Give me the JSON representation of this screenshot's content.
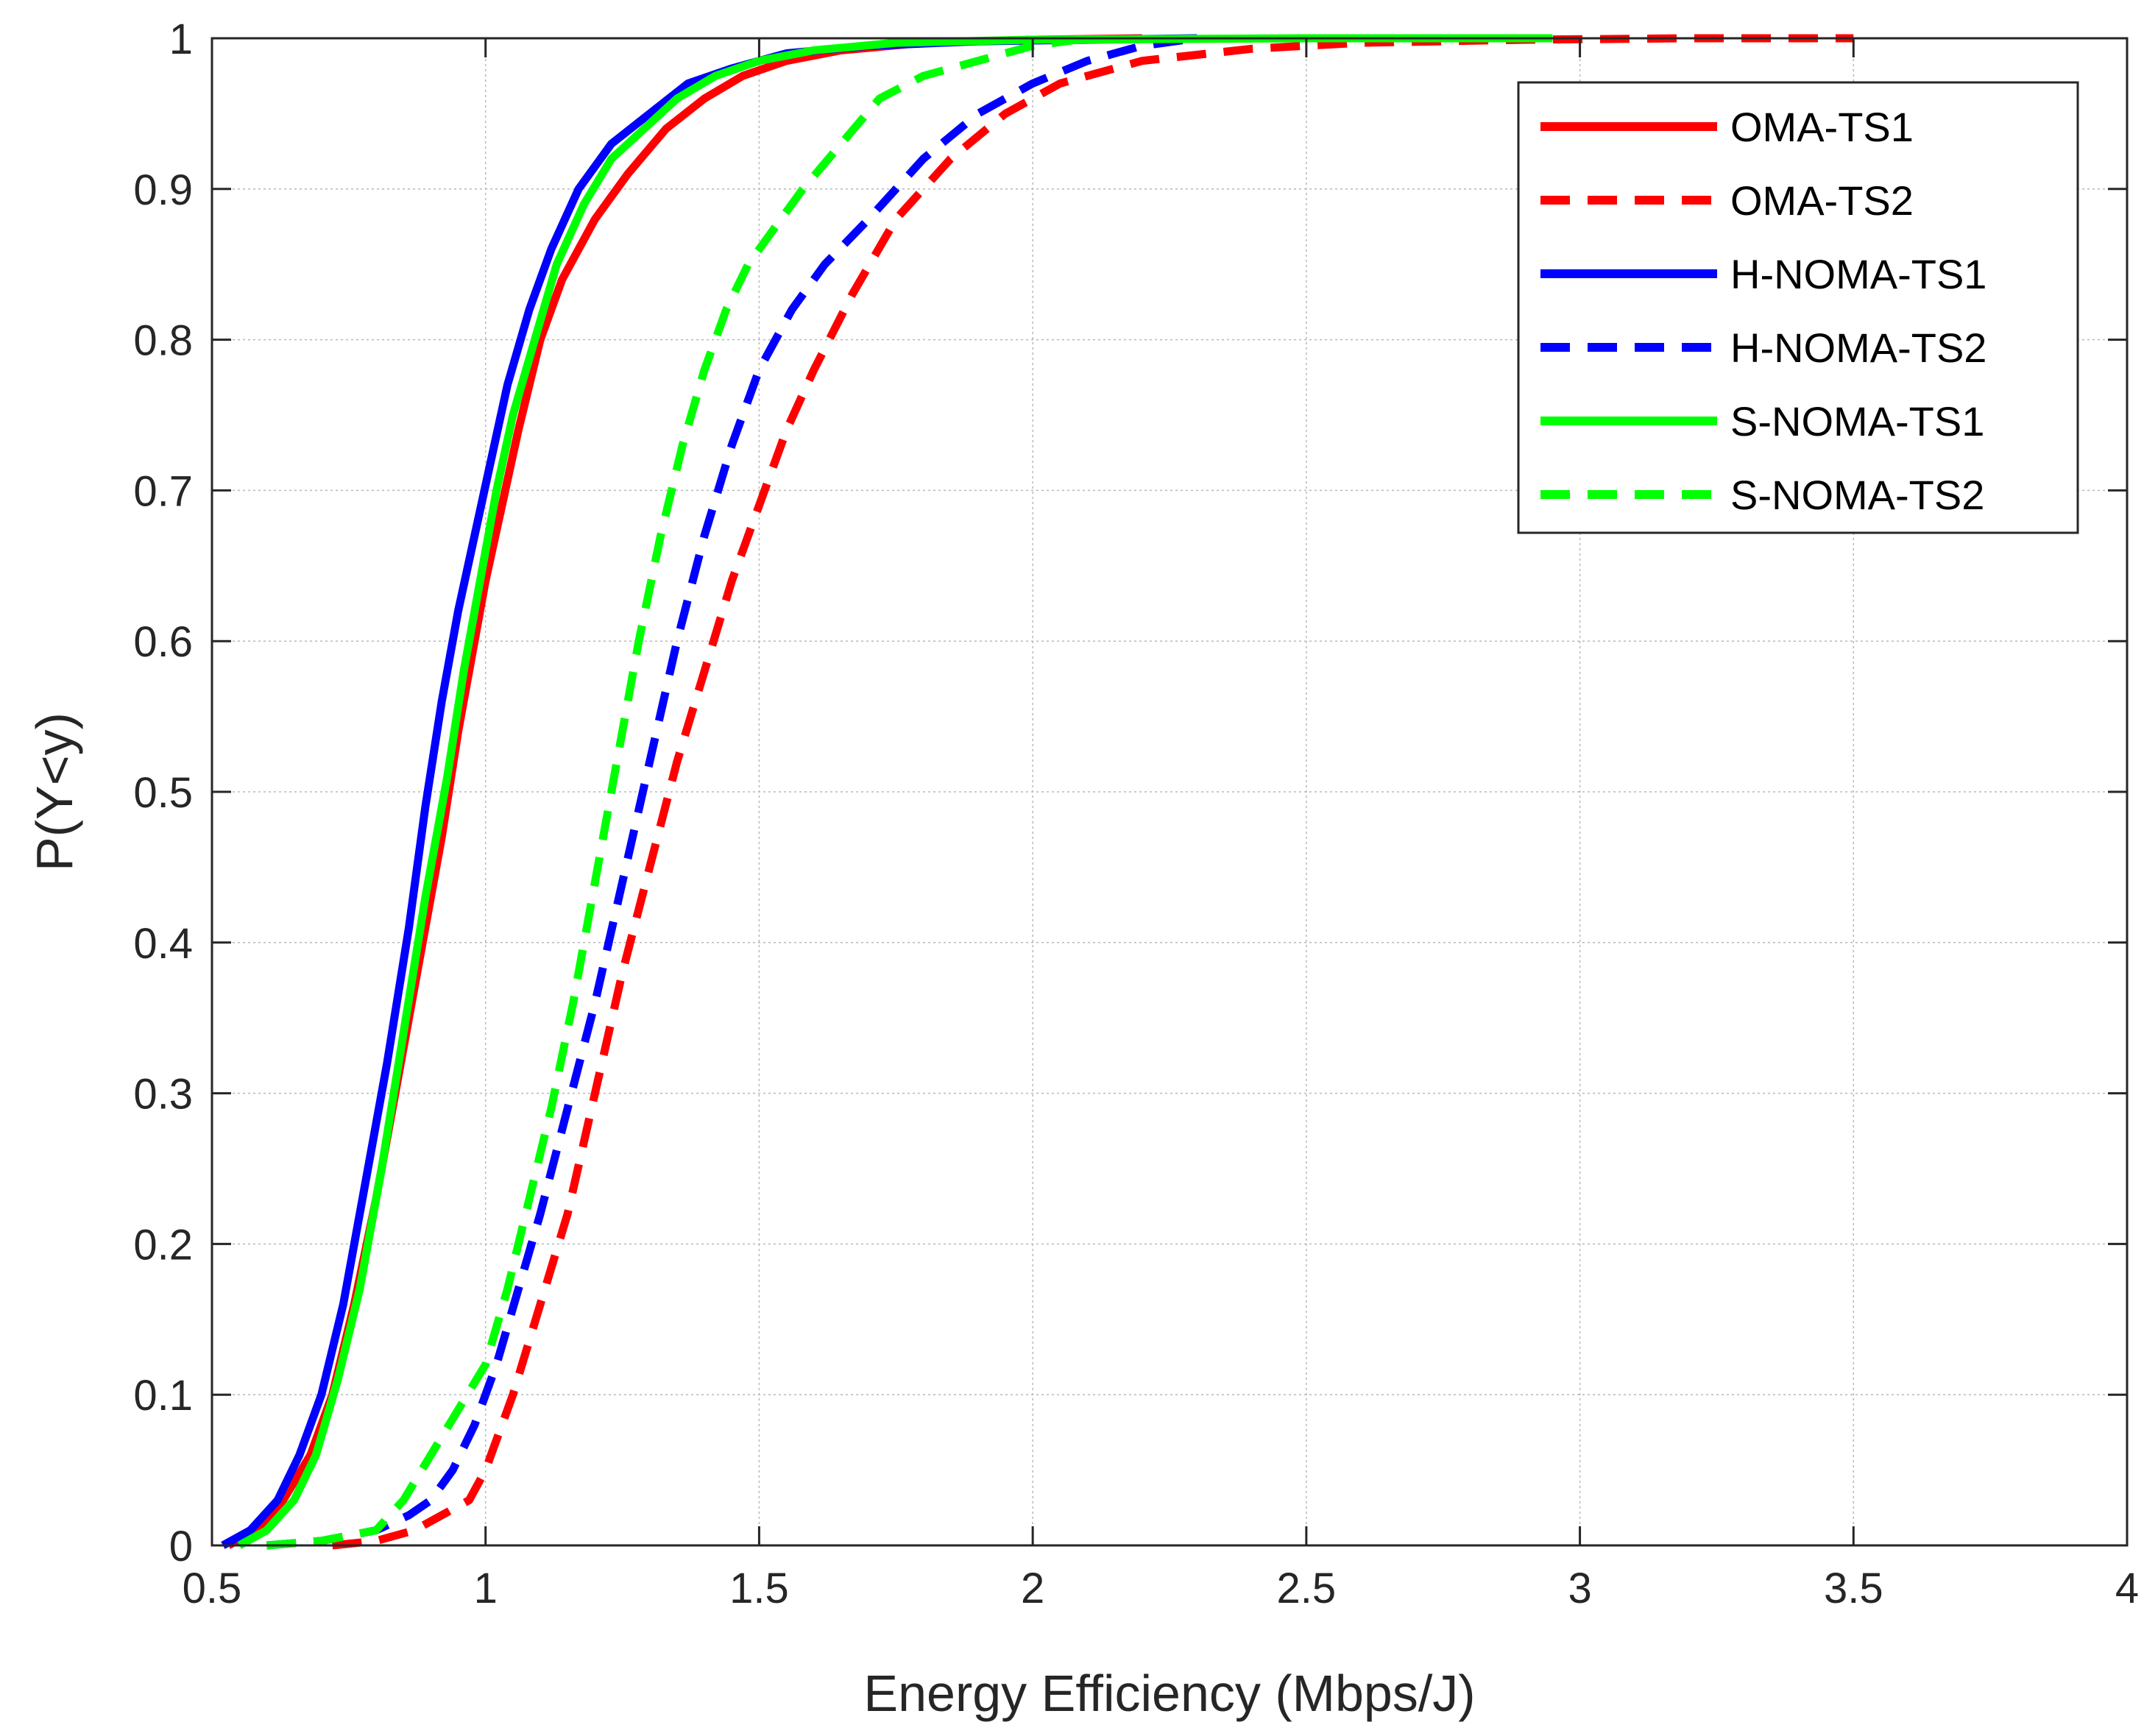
{
  "chart_data": {
    "type": "line",
    "title": "",
    "xlabel": "Energy Efficiency (Mbps/J)",
    "ylabel": "P(Y<y)",
    "xlim": [
      0.5,
      4
    ],
    "ylim": [
      0,
      1
    ],
    "xticks": [
      0.5,
      1,
      1.5,
      2,
      2.5,
      3,
      3.5,
      4
    ],
    "xtick_labels": [
      "0.5",
      "1",
      "1.5",
      "2",
      "2.5",
      "3",
      "3.5",
      "4"
    ],
    "yticks": [
      0,
      0.1,
      0.2,
      0.3,
      0.4,
      0.5,
      0.6,
      0.7,
      0.8,
      0.9,
      1
    ],
    "ytick_labels": [
      "0",
      "0.1",
      "0.2",
      "0.3",
      "0.4",
      "0.5",
      "0.6",
      "0.7",
      "0.8",
      "0.9",
      "1"
    ],
    "grid": true,
    "legend_position": "top-right",
    "series": [
      {
        "name": "OMA-TS1",
        "color": "#ff0000",
        "style": "solid",
        "x": [
          0.53,
          0.58,
          0.63,
          0.68,
          0.72,
          0.76,
          0.8,
          0.84,
          0.88,
          0.92,
          0.95,
          0.98,
          1.0,
          1.03,
          1.06,
          1.1,
          1.14,
          1.2,
          1.26,
          1.33,
          1.4,
          1.47,
          1.55,
          1.65,
          1.8,
          2.0,
          2.2
        ],
        "y": [
          0.0,
          0.01,
          0.03,
          0.06,
          0.1,
          0.16,
          0.23,
          0.31,
          0.39,
          0.47,
          0.54,
          0.6,
          0.64,
          0.69,
          0.74,
          0.8,
          0.84,
          0.88,
          0.91,
          0.94,
          0.96,
          0.975,
          0.985,
          0.992,
          0.997,
          0.999,
          1.0
        ]
      },
      {
        "name": "OMA-TS2",
        "color": "#ff0000",
        "style": "dashed",
        "x": [
          0.72,
          0.8,
          0.87,
          0.92,
          0.97,
          1.0,
          1.05,
          1.1,
          1.15,
          1.2,
          1.25,
          1.3,
          1.35,
          1.4,
          1.45,
          1.5,
          1.55,
          1.6,
          1.67,
          1.75,
          1.85,
          1.95,
          2.05,
          2.2,
          2.4,
          2.6,
          2.9,
          3.2,
          3.5
        ],
        "y": [
          0.0,
          0.003,
          0.01,
          0.02,
          0.03,
          0.05,
          0.1,
          0.16,
          0.22,
          0.3,
          0.38,
          0.45,
          0.52,
          0.58,
          0.64,
          0.69,
          0.74,
          0.78,
          0.83,
          0.88,
          0.92,
          0.95,
          0.97,
          0.985,
          0.993,
          0.997,
          0.999,
          1.0,
          1.0
        ]
      },
      {
        "name": "H-NOMA-TS1",
        "color": "#0000ff",
        "style": "solid",
        "x": [
          0.52,
          0.57,
          0.62,
          0.66,
          0.7,
          0.74,
          0.78,
          0.82,
          0.86,
          0.89,
          0.92,
          0.95,
          0.98,
          1.01,
          1.04,
          1.08,
          1.12,
          1.17,
          1.23,
          1.3,
          1.37,
          1.45,
          1.55,
          1.7,
          1.9,
          2.1,
          2.3
        ],
        "y": [
          0.0,
          0.01,
          0.03,
          0.06,
          0.1,
          0.16,
          0.24,
          0.32,
          0.41,
          0.49,
          0.56,
          0.62,
          0.67,
          0.72,
          0.77,
          0.82,
          0.86,
          0.9,
          0.93,
          0.95,
          0.97,
          0.98,
          0.99,
          0.995,
          0.998,
          0.999,
          1.0
        ]
      },
      {
        "name": "H-NOMA-TS2",
        "color": "#0000ff",
        "style": "dashed",
        "x": [
          0.6,
          0.7,
          0.8,
          0.86,
          0.9,
          0.94,
          0.98,
          1.02,
          1.06,
          1.1,
          1.15,
          1.2,
          1.25,
          1.3,
          1.35,
          1.4,
          1.45,
          1.5,
          1.56,
          1.62,
          1.7,
          1.8,
          1.9,
          2.0,
          2.1,
          2.2,
          2.3
        ],
        "y": [
          0.0,
          0.003,
          0.01,
          0.02,
          0.03,
          0.05,
          0.08,
          0.12,
          0.17,
          0.22,
          0.29,
          0.36,
          0.44,
          0.52,
          0.6,
          0.67,
          0.73,
          0.78,
          0.82,
          0.85,
          0.88,
          0.92,
          0.95,
          0.97,
          0.985,
          0.995,
          1.0
        ]
      },
      {
        "name": "S-NOMA-TS1",
        "color": "#00ff00",
        "style": "solid",
        "x": [
          0.55,
          0.6,
          0.65,
          0.69,
          0.73,
          0.77,
          0.81,
          0.85,
          0.89,
          0.93,
          0.96,
          0.99,
          1.02,
          1.05,
          1.09,
          1.13,
          1.18,
          1.23,
          1.29,
          1.35,
          1.42,
          1.5,
          1.6,
          1.75,
          2.0,
          2.5,
          2.95
        ],
        "y": [
          0.0,
          0.01,
          0.03,
          0.06,
          0.11,
          0.17,
          0.25,
          0.34,
          0.43,
          0.51,
          0.58,
          0.64,
          0.7,
          0.75,
          0.8,
          0.85,
          0.89,
          0.92,
          0.94,
          0.96,
          0.975,
          0.985,
          0.992,
          0.997,
          0.999,
          1.0,
          1.0
        ]
      },
      {
        "name": "S-NOMA-TS2",
        "color": "#00ff00",
        "style": "dashed",
        "x": [
          0.6,
          0.7,
          0.8,
          0.85,
          0.9,
          0.95,
          1.0,
          1.04,
          1.08,
          1.12,
          1.16,
          1.2,
          1.24,
          1.28,
          1.32,
          1.36,
          1.4,
          1.44,
          1.48,
          1.52,
          1.58,
          1.65,
          1.72,
          1.8,
          1.9,
          2.0,
          2.1
        ],
        "y": [
          0.0,
          0.003,
          0.01,
          0.03,
          0.06,
          0.09,
          0.12,
          0.17,
          0.23,
          0.29,
          0.36,
          0.44,
          0.52,
          0.6,
          0.67,
          0.73,
          0.78,
          0.82,
          0.85,
          0.87,
          0.9,
          0.93,
          0.96,
          0.975,
          0.985,
          0.995,
          1.0
        ]
      }
    ]
  }
}
